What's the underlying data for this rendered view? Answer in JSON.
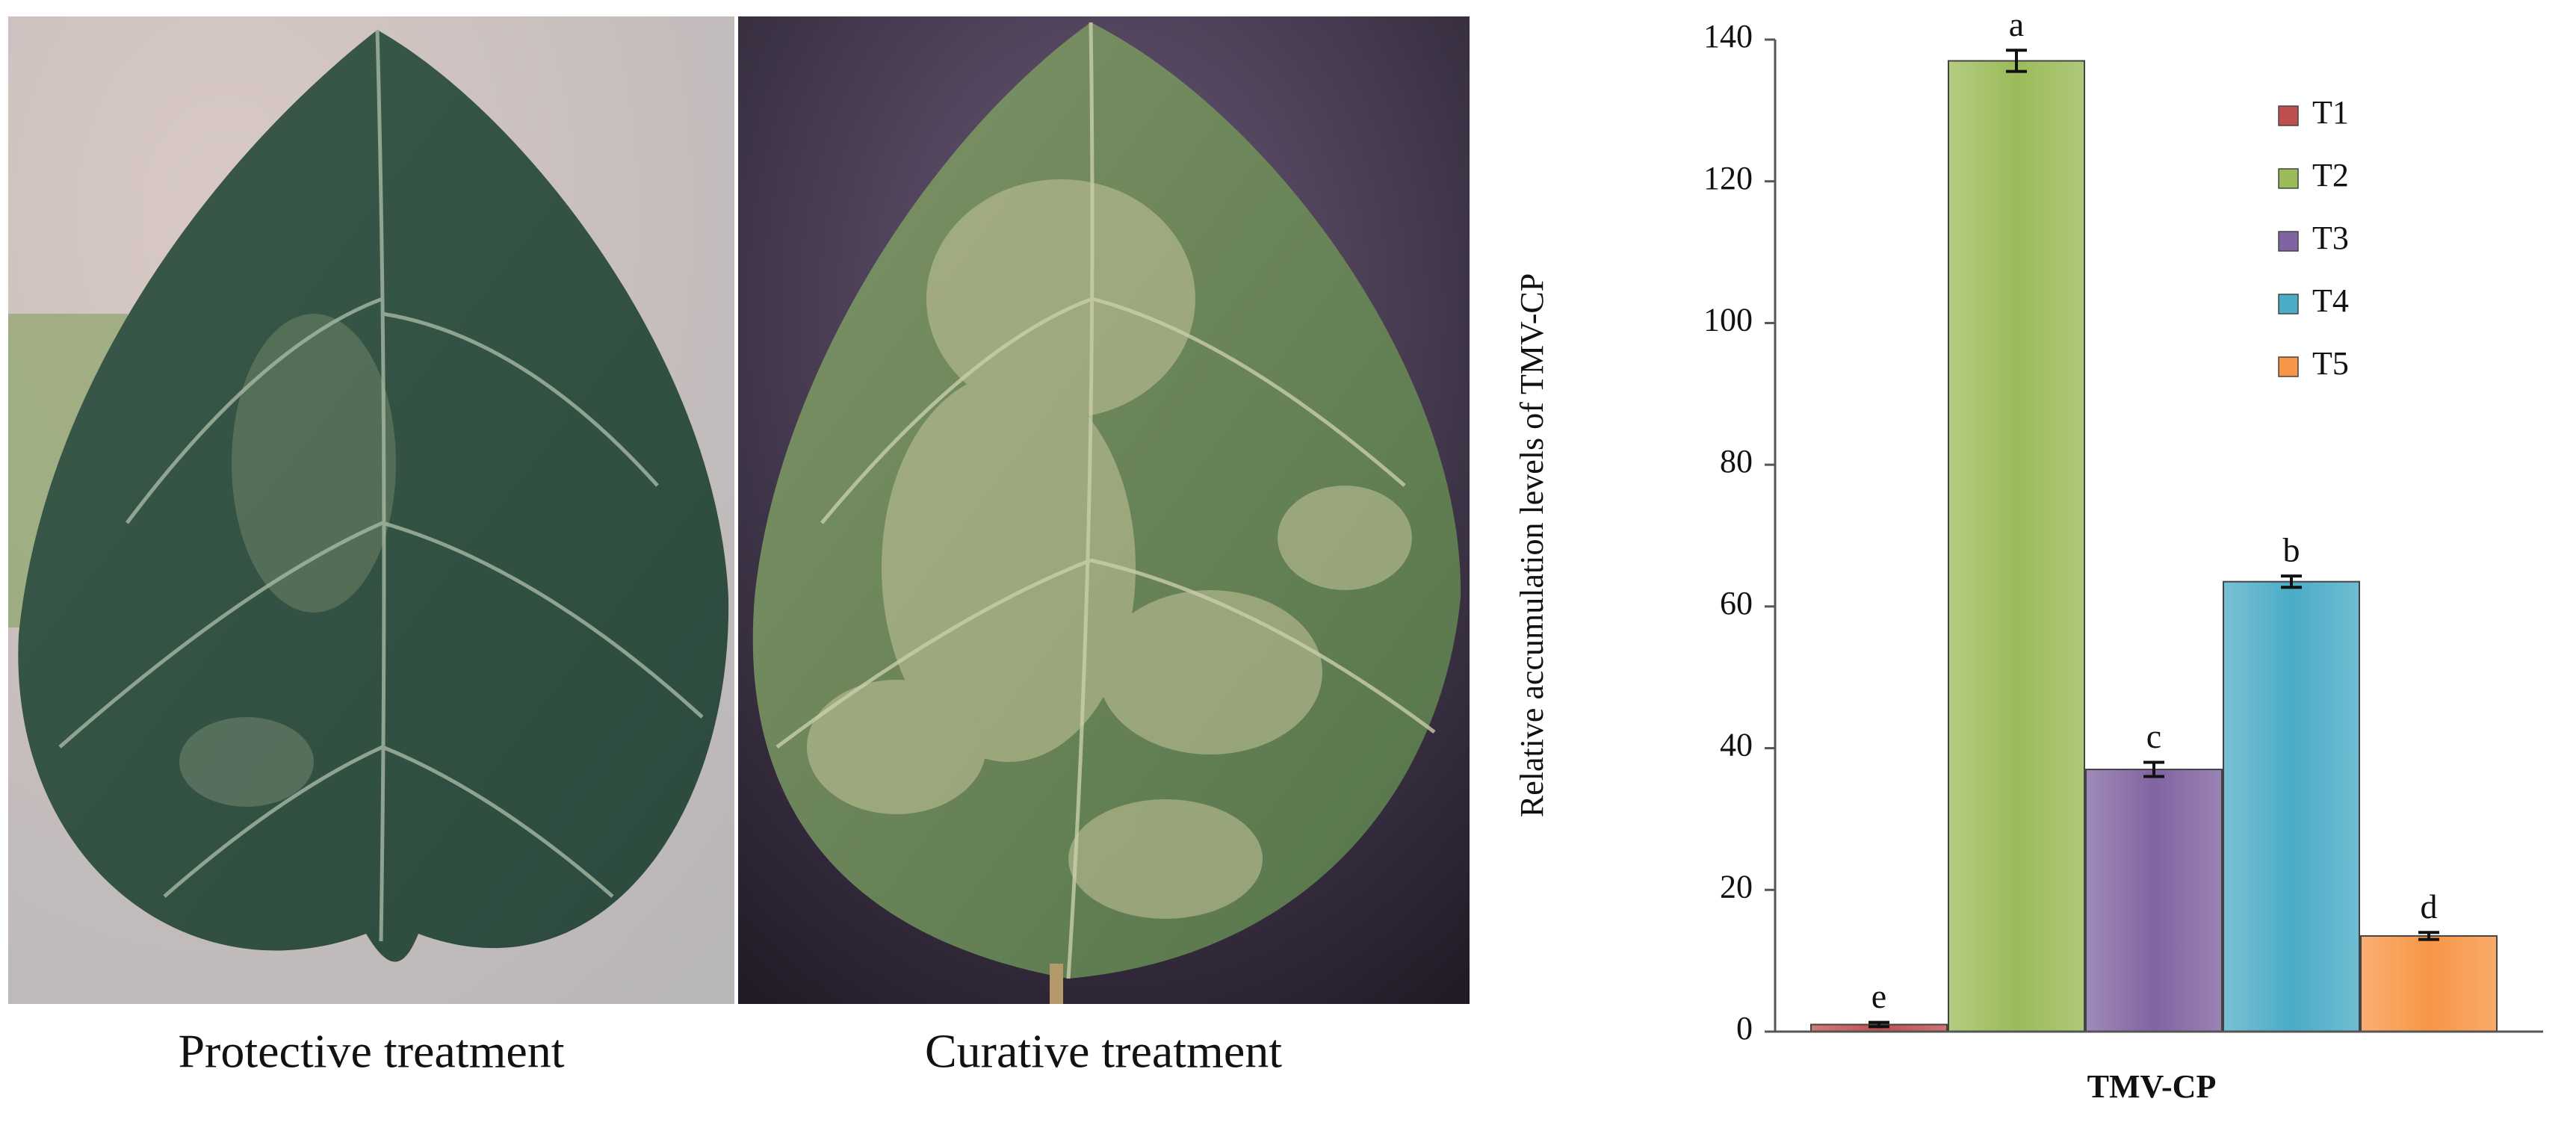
{
  "panels": [
    {
      "caption": "Protective treatment"
    },
    {
      "caption": "Curative treatment"
    }
  ],
  "chart_data": {
    "type": "bar",
    "y_label": "Relative accumulation levels of TMV-CP",
    "x_label": "TMV-CP",
    "ylim": [
      0,
      140
    ],
    "yticks": [
      0,
      20,
      40,
      60,
      80,
      100,
      120,
      140
    ],
    "legend": "upper right",
    "series": [
      {
        "name": "T1",
        "color": "#c0504d",
        "values": [
          1
        ],
        "errors": [
          0.3
        ],
        "label": "e"
      },
      {
        "name": "T2",
        "color": "#9bbb59",
        "values": [
          137
        ],
        "errors": [
          1.5
        ],
        "label": "a"
      },
      {
        "name": "T3",
        "color": "#8064a2",
        "values": [
          37
        ],
        "errors": [
          1
        ],
        "label": "c"
      },
      {
        "name": "T4",
        "color": "#4bacc6",
        "values": [
          63.5
        ],
        "errors": [
          0.8
        ],
        "label": "b"
      },
      {
        "name": "T5",
        "color": "#f79646",
        "values": [
          13.5
        ],
        "errors": [
          0.5
        ],
        "label": "d"
      }
    ]
  }
}
